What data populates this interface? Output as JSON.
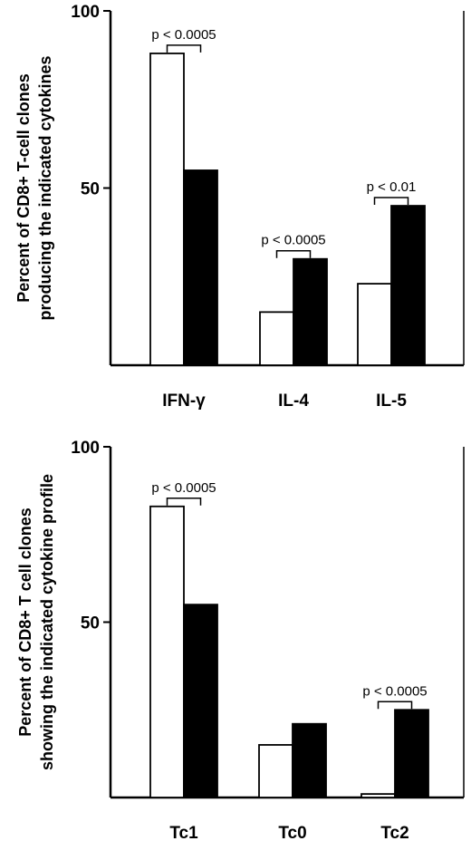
{
  "chart_data": [
    {
      "type": "bar",
      "ylabel_lines": [
        "Percent of CD8+ T-cell clones",
        "producing the indicated cytokines"
      ],
      "categories": [
        "IFN-γ",
        "IL-4",
        "IL-5"
      ],
      "series": [
        {
          "color": "#ffffff",
          "values": [
            88,
            15,
            23
          ]
        },
        {
          "color": "#000000",
          "values": [
            55,
            30,
            45
          ]
        }
      ],
      "ylim": [
        0,
        100
      ],
      "yticks": [
        "50",
        "100"
      ],
      "annotations": [
        {
          "category": 0,
          "text": "p < 0.0005"
        },
        {
          "category": 1,
          "text": "p < 0.0005"
        },
        {
          "category": 2,
          "text": "p < 0.01"
        }
      ],
      "grid": false,
      "legend": "none"
    },
    {
      "type": "bar",
      "ylabel_lines": [
        "Percent of CD8+ T cell clones",
        "showing the indicated cytokine profile"
      ],
      "categories": [
        "Tc1",
        "Tc0",
        "Tc2"
      ],
      "series": [
        {
          "color": "#ffffff",
          "values": [
            83,
            15,
            1
          ]
        },
        {
          "color": "#000000",
          "values": [
            55,
            21,
            25
          ]
        }
      ],
      "ylim": [
        0,
        100
      ],
      "yticks": [
        "50",
        "100"
      ],
      "annotations": [
        {
          "category": 0,
          "text": "p < 0.0005"
        },
        {
          "category": 2,
          "text": "p < 0.0005"
        }
      ],
      "grid": false,
      "legend": "none"
    }
  ]
}
